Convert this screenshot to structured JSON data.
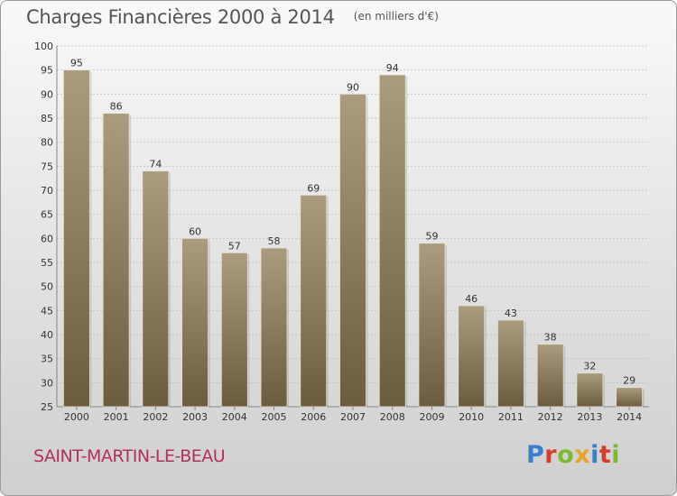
{
  "header": {
    "title": "Charges Financières 2000 à 2014",
    "unit": "(en milliers d'€)"
  },
  "footer": {
    "place": "SAINT-MARTIN-LE-BEAU",
    "logo": "Proxiti",
    "logo_colors": [
      "#3a7fc9",
      "#d83a2e",
      "#7dbb31",
      "#e8a524",
      "#3a7fc9",
      "#d83a2e",
      "#7dbb31"
    ]
  },
  "colors": {
    "bar_light": "#ab9b7f",
    "bar_dark": "#6b5b3f",
    "grid": "#b8b8b8"
  },
  "chart_data": {
    "type": "bar",
    "title": "Charges Financières 2000 à 2014",
    "subtitle": "(en milliers d'€)",
    "categories": [
      "2000",
      "2001",
      "2002",
      "2003",
      "2004",
      "2005",
      "2006",
      "2007",
      "2008",
      "2009",
      "2010",
      "2011",
      "2012",
      "2013",
      "2014"
    ],
    "values": [
      95,
      86,
      74,
      60,
      57,
      58,
      69,
      90,
      94,
      59,
      46,
      43,
      38,
      32,
      29
    ],
    "ylim": [
      25,
      100
    ],
    "yticks": [
      25,
      30,
      35,
      40,
      45,
      50,
      55,
      60,
      65,
      70,
      75,
      80,
      85,
      90,
      95,
      100
    ],
    "grid": true,
    "xlabel": "",
    "ylabel": ""
  }
}
